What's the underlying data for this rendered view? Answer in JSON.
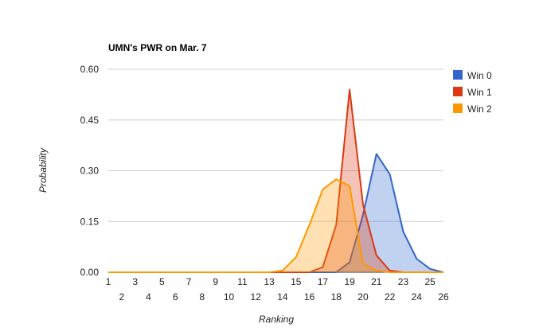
{
  "chart_data": {
    "type": "area",
    "title": "UMN's PWR on Mar. 7",
    "xlabel": "Ranking",
    "ylabel": "Probability",
    "xlim": [
      1,
      26
    ],
    "ylim": [
      0,
      0.6
    ],
    "yticks": [
      "0.00",
      "0.15",
      "0.30",
      "0.45",
      "0.60"
    ],
    "xticks_top": [
      "1",
      "3",
      "5",
      "7",
      "9",
      "11",
      "13",
      "15",
      "17",
      "19",
      "21",
      "23",
      "25"
    ],
    "xticks_bottom": [
      "2",
      "4",
      "6",
      "8",
      "10",
      "12",
      "14",
      "16",
      "18",
      "20",
      "22",
      "24",
      "26"
    ],
    "grid": true,
    "legend_position": "right",
    "x": [
      1,
      2,
      3,
      4,
      5,
      6,
      7,
      8,
      9,
      10,
      11,
      12,
      13,
      14,
      15,
      16,
      17,
      18,
      19,
      20,
      21,
      22,
      23,
      24,
      25,
      26
    ],
    "series": [
      {
        "name": "Win 0",
        "color": "#3366cc",
        "values": [
          0,
          0,
          0,
          0,
          0,
          0,
          0,
          0,
          0,
          0,
          0,
          0,
          0,
          0,
          0,
          0,
          0,
          0,
          0.03,
          0.17,
          0.35,
          0.29,
          0.12,
          0.04,
          0.01,
          0
        ]
      },
      {
        "name": "Win 1",
        "color": "#dc3912",
        "values": [
          0,
          0,
          0,
          0,
          0,
          0,
          0,
          0,
          0,
          0,
          0,
          0,
          0,
          0,
          0,
          0,
          0.015,
          0.14,
          0.54,
          0.2,
          0.05,
          0.005,
          0,
          0,
          0,
          0
        ]
      },
      {
        "name": "Win 2",
        "color": "#ff9900",
        "values": [
          0,
          0,
          0,
          0,
          0,
          0,
          0,
          0,
          0,
          0,
          0,
          0,
          0,
          0.005,
          0.045,
          0.14,
          0.245,
          0.275,
          0.255,
          0.025,
          0.005,
          0,
          0,
          0,
          0,
          0
        ]
      }
    ]
  }
}
